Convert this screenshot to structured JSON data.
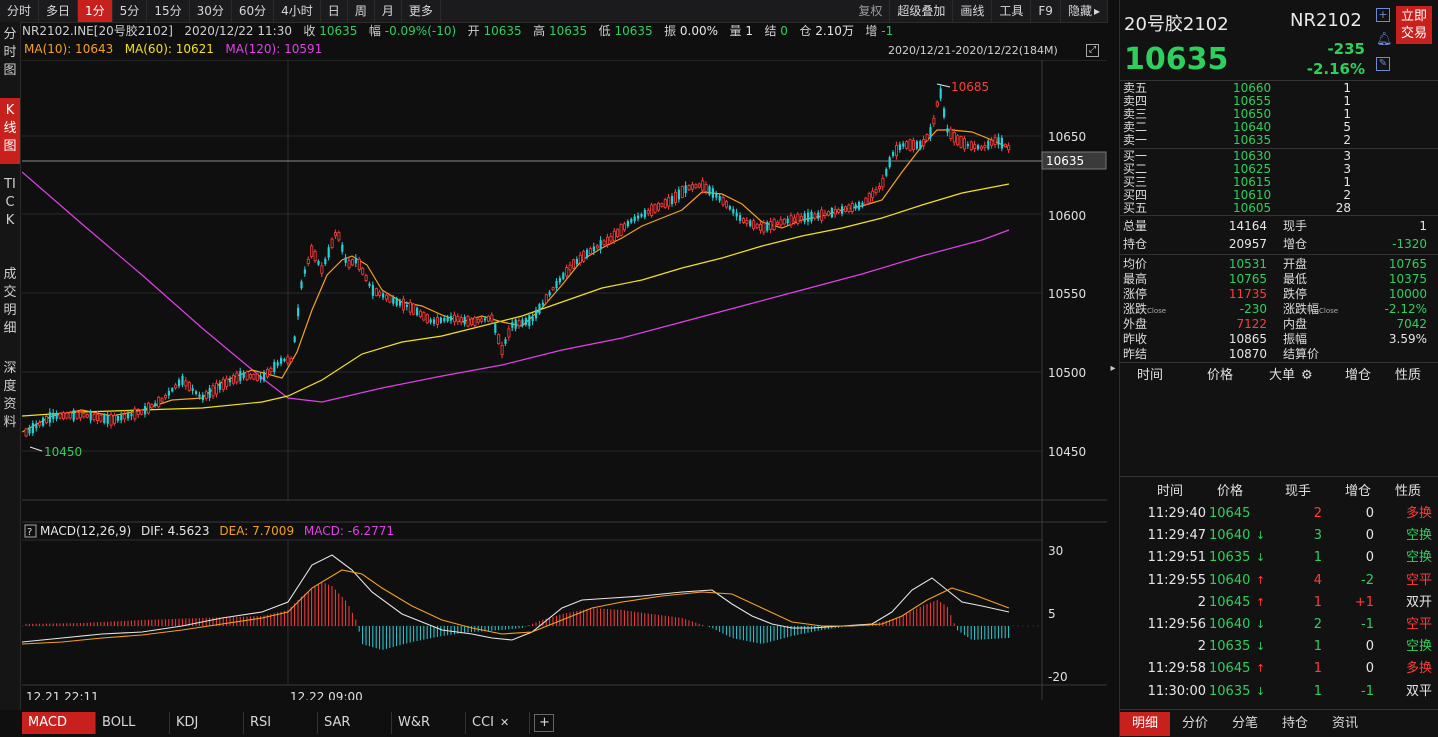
{
  "toolbar": {
    "periods": [
      "分时",
      "多日",
      "1分",
      "5分",
      "15分",
      "30分",
      "60分",
      "4小时",
      "日",
      "周",
      "月",
      "更多"
    ],
    "active_period": "1分",
    "tools": [
      "复权",
      "超级叠加",
      "画线",
      "工具",
      "F9",
      "隐藏"
    ]
  },
  "left_nav": [
    "分时图",
    "K线图",
    "TICK",
    "成交明细",
    "深度资料"
  ],
  "info": {
    "symbol": "NR2102.INE[20号胶2102]",
    "datetime": "2020/12/22 11:30",
    "close_label": "收",
    "close": "10635",
    "range_label": "幅",
    "range": "-0.09%(-10)",
    "open_label": "开",
    "open": "10635",
    "high_label": "高",
    "high": "10635",
    "low_label": "低",
    "low": "10635",
    "amp_label": "振",
    "amp": "0.00%",
    "vol_label": "量",
    "vol": "1",
    "settle_label": "结",
    "settle": "0",
    "oi_label": "仓",
    "oi": "2.10万",
    "chg_label": "增",
    "chg": "-1"
  },
  "ma": {
    "ma10": "MA(10): 10643",
    "ma60": "MA(60): 10621",
    "ma120": "MA(120): 10591"
  },
  "date_range": "2020/12/21-2020/12/22(184M)",
  "price_axis": [
    "10650",
    "10600",
    "10550",
    "10500",
    "10450"
  ],
  "current_price_tag": "10635",
  "marks": {
    "high": "10685",
    "low": "10450"
  },
  "macd": {
    "label": "MACD(12,26,9)",
    "dif": "DIF: 4.5623",
    "dea": "DEA: 7.7009",
    "macd": "MACD: -6.2771",
    "axis": [
      "30",
      "5",
      "-20"
    ]
  },
  "time_axis": [
    "12.21 22:11",
    "12.22 09:00"
  ],
  "indicator_tabs": [
    "MACD",
    "BOLL",
    "KDJ",
    "RSI",
    "SAR",
    "W&R",
    "CCI"
  ],
  "colors": {
    "up": "#ff3b3b",
    "down": "#26d0d8",
    "ma10": "#f5a020",
    "ma60": "#f2e21b",
    "ma120": "#e040e8",
    "accent": "#c8201c"
  },
  "quote": {
    "name": "20号胶2102",
    "code": "NR2102",
    "price": "10635",
    "change": "-235",
    "pct": "-2.16%",
    "trade_button": "立即交易"
  },
  "order_book": {
    "asks": [
      {
        "label": "卖五",
        "price": "10660",
        "vol": "1"
      },
      {
        "label": "卖四",
        "price": "10655",
        "vol": "1"
      },
      {
        "label": "卖三",
        "price": "10650",
        "vol": "1"
      },
      {
        "label": "卖二",
        "price": "10640",
        "vol": "5"
      },
      {
        "label": "卖一",
        "price": "10635",
        "vol": "2"
      }
    ],
    "bids": [
      {
        "label": "买一",
        "price": "10630",
        "vol": "3"
      },
      {
        "label": "买二",
        "price": "10625",
        "vol": "3"
      },
      {
        "label": "买三",
        "price": "10615",
        "vol": "1"
      },
      {
        "label": "买四",
        "price": "10610",
        "vol": "2"
      },
      {
        "label": "买五",
        "price": "10605",
        "vol": "28"
      }
    ]
  },
  "stats1": [
    {
      "l1": "总量",
      "v1": "14164",
      "l2": "现手",
      "v2": "1"
    },
    {
      "l1": "持仓",
      "v1": "20957",
      "l2": "增仓",
      "v2": "-1320"
    }
  ],
  "stats2": [
    {
      "l1": "均价",
      "v1": "10531",
      "l2": "开盘",
      "v2": "10765"
    },
    {
      "l1": "最高",
      "v1": "10765",
      "l2": "最低",
      "v2": "10375"
    },
    {
      "l1": "涨停",
      "v1": "11735",
      "l2": "跌停",
      "v2": "10000"
    },
    {
      "l1": "涨跌",
      "s1": "Close",
      "v1": "-230",
      "l2": "涨跌幅",
      "s2": "Close",
      "v2": "-2.12%"
    },
    {
      "l1": "外盘",
      "v1": "7122",
      "l2": "内盘",
      "v2": "7042"
    },
    {
      "l1": "昨收",
      "v1": "10865",
      "l2": "振幅",
      "v2": "3.59%"
    },
    {
      "l1": "昨结",
      "v1": "10870",
      "l2": "结算价",
      "v2": ""
    }
  ],
  "big_order_headers": [
    "时间",
    "价格",
    "大单",
    "增仓",
    "性质"
  ],
  "tick_headers": [
    "时间",
    "价格",
    "现手",
    "增仓",
    "性质"
  ],
  "ticks": [
    {
      "time": "11:29:40",
      "price": "10645",
      "dir": "",
      "hand": "2",
      "chg": "0",
      "nature": "多换"
    },
    {
      "time": "11:29:47",
      "price": "10640",
      "dir": "down",
      "hand": "3",
      "chg": "0",
      "nature": "空换"
    },
    {
      "time": "11:29:51",
      "price": "10635",
      "dir": "down",
      "hand": "1",
      "chg": "0",
      "nature": "空换"
    },
    {
      "time": "11:29:55",
      "price": "10640",
      "dir": "up",
      "hand": "4",
      "chg": "-2",
      "nature": "空平"
    },
    {
      "time": "2",
      "price": "10645",
      "dir": "up",
      "hand": "1",
      "chg": "+1",
      "nature": "双开"
    },
    {
      "time": "11:29:56",
      "price": "10640",
      "dir": "down",
      "hand": "2",
      "chg": "-1",
      "nature": "空平"
    },
    {
      "time": "2",
      "price": "10635",
      "dir": "down",
      "hand": "1",
      "chg": "0",
      "nature": "空换"
    },
    {
      "time": "11:29:58",
      "price": "10645",
      "dir": "up",
      "hand": "1",
      "chg": "0",
      "nature": "多换"
    },
    {
      "time": "11:30:00",
      "price": "10635",
      "dir": "down",
      "hand": "1",
      "chg": "-1",
      "nature": "双平"
    }
  ],
  "right_tabs": [
    "明细",
    "分价",
    "分笔",
    "持仓",
    "资讯"
  ]
}
